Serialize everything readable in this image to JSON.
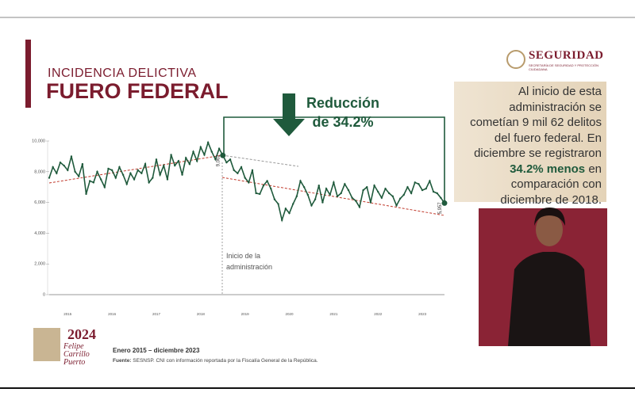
{
  "header": {
    "subtitle": "INCIDENCIA DELICTIVA",
    "title": "FUERO FEDERAL"
  },
  "logo": {
    "name": "SEGURIDAD",
    "caption": "SECRETARÍA DE SEGURIDAD Y PROTECCIÓN CIUDADANA"
  },
  "text_box": {
    "before": "Al inicio de esta administración se cometían 9 mil 62 delitos del fuero federal. En diciembre se registraron",
    "bold": "34.2% menos",
    "after": "en comparación con diciembre de 2018."
  },
  "footer": {
    "period": "Enero 2015 – diciembre 2023",
    "source_label": "Fuente:",
    "source": "SESNSP. CNI con información reportada por la Fiscalía General de la República.",
    "emblem_year": "2024",
    "emblem_name": "Felipe Carrillo Puerto"
  },
  "chart_data": {
    "type": "line",
    "color": "#1f5a3c",
    "annotations": [
      "Reducción",
      "de 34.2%",
      "Inicio de la",
      "administración"
    ],
    "categories": [
      null,
      null,
      null,
      null,
      null,
      "2015",
      null,
      null,
      null,
      null,
      null,
      null,
      null,
      null,
      null,
      null,
      null,
      "2016",
      null,
      null,
      null,
      null,
      null,
      null,
      null,
      null,
      null,
      null,
      null,
      "2017",
      null,
      null,
      null,
      null,
      null,
      null,
      null,
      null,
      null,
      null,
      null,
      "2018",
      null,
      null,
      null,
      null,
      null,
      null,
      null,
      null,
      null,
      null,
      null,
      "2019",
      null,
      null,
      null,
      null,
      null,
      null,
      null,
      null,
      null,
      null,
      null,
      "2020",
      null,
      null,
      null,
      null,
      null,
      null,
      null,
      null,
      null,
      null,
      null,
      "2021",
      null,
      null,
      null,
      null,
      null,
      null,
      null,
      null,
      null,
      null,
      null,
      "2022",
      null,
      null,
      null,
      null,
      null,
      null,
      null,
      null,
      null,
      null,
      null,
      "2023",
      null,
      null,
      null,
      null,
      null,
      null
    ],
    "values": [
      7600,
      8300,
      7900,
      8600,
      8400,
      8100,
      9000,
      8000,
      7700,
      8500,
      6550,
      7400,
      7300,
      8000,
      7500,
      7000,
      8200,
      8100,
      7600,
      8300,
      7800,
      7200,
      7900,
      7500,
      8100,
      7900,
      8500,
      7300,
      7600,
      8800,
      7800,
      8400,
      7500,
      9100,
      8400,
      8700,
      7800,
      8900,
      8500,
      9300,
      8700,
      9600,
      9100,
      9900,
      9300,
      8800,
      9500,
      9062,
      8600,
      8800,
      8100,
      7900,
      8300,
      7600,
      7300,
      8100,
      6600,
      6550,
      7100,
      7400,
      6900,
      6200,
      5900,
      4850,
      5600,
      5300,
      5900,
      6400,
      7400,
      7000,
      6500,
      5800,
      6200,
      7100,
      6000,
      6900,
      6500,
      7300,
      6400,
      6600,
      7200,
      6800,
      6300,
      6100,
      5700,
      6800,
      7000,
      6000,
      7100,
      6700,
      6300,
      6900,
      6600,
      6400,
      5800,
      6251,
      6500,
      7000,
      6600,
      7300,
      7200,
      6800,
      6900,
      7400,
      6700,
      6600,
      6300,
      5957
    ],
    "value_labels": [
      null,
      null,
      null,
      null,
      null,
      null,
      null,
      null,
      null,
      null,
      null,
      null,
      null,
      null,
      null,
      null,
      null,
      null,
      null,
      null,
      null,
      null,
      null,
      null,
      null,
      null,
      null,
      null,
      null,
      null,
      null,
      null,
      null,
      null,
      null,
      null,
      null,
      null,
      null,
      null,
      null,
      null,
      null,
      null,
      null,
      null,
      null,
      "9,062",
      null,
      null,
      null,
      null,
      null,
      null,
      null,
      null,
      null,
      null,
      null,
      null,
      null,
      null,
      null,
      null,
      null,
      null,
      null,
      null,
      null,
      null,
      null,
      null,
      null,
      null,
      null,
      null,
      null,
      null,
      null,
      null,
      null,
      null,
      null,
      null,
      null,
      null,
      null,
      null,
      null,
      null,
      null,
      null,
      null,
      null,
      null,
      null,
      null,
      null,
      null,
      null,
      null,
      null,
      null,
      null,
      null,
      null,
      null,
      "5,957"
    ],
    "ylim": [
      0,
      10000
    ],
    "yticks": [
      0,
      {
        "value": 2000,
        "label": "2,000"
      },
      {
        "value": 4000,
        "label": "4,000"
      },
      {
        "value": 6000,
        "label": "6,000"
      },
      {
        "value": 8000,
        "label": "8,000"
      },
      {
        "value": 10000,
        "label": "10,000"
      }
    ],
    "grid": false
  }
}
